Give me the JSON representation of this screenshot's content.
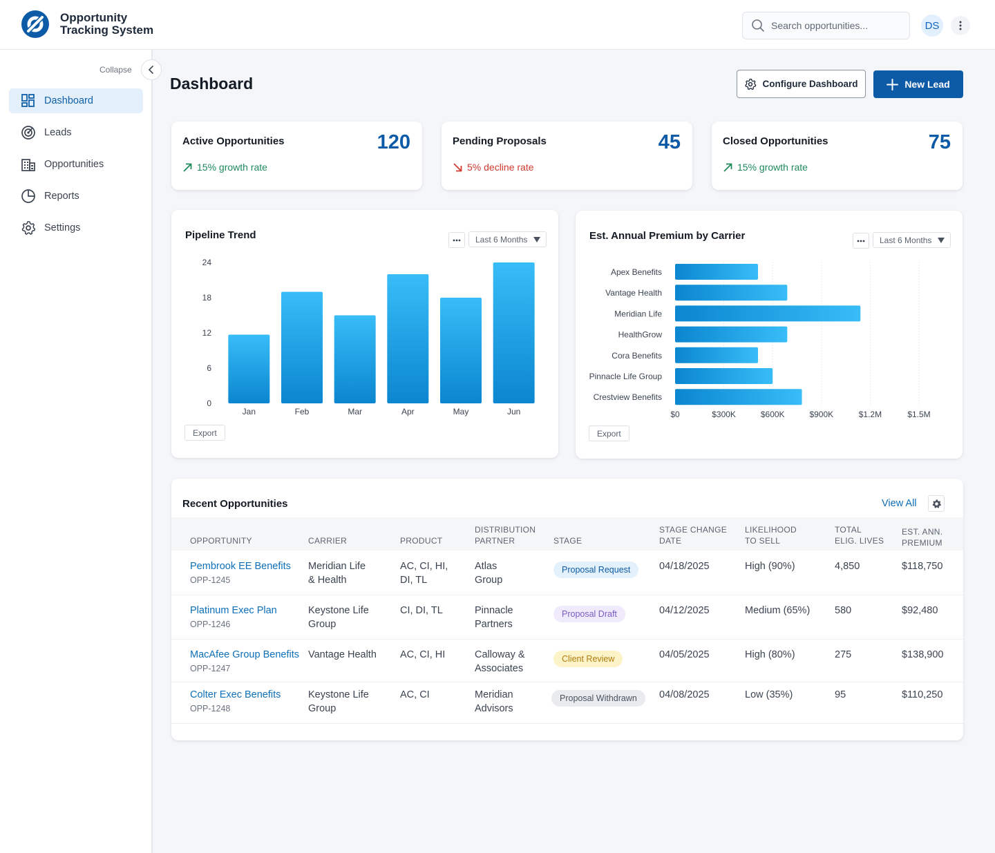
{
  "app": {
    "title_line1": "Opportunity",
    "title_line2": "Tracking System"
  },
  "header": {
    "search_placeholder": "Search opportunities...",
    "avatar_initials": "DS"
  },
  "sidebar": {
    "collapse_label": "Collapse",
    "items": [
      {
        "label": "Dashboard",
        "icon": "dashboard-icon",
        "active": true
      },
      {
        "label": "Leads",
        "icon": "target-icon",
        "active": false
      },
      {
        "label": "Opportunities",
        "icon": "building-icon",
        "active": false
      },
      {
        "label": "Reports",
        "icon": "pie-chart-icon",
        "active": false
      },
      {
        "label": "Settings",
        "icon": "gear-icon",
        "active": false
      }
    ]
  },
  "page": {
    "title": "Dashboard",
    "configure_label": "Configure Dashboard",
    "new_lead_label": "New Lead"
  },
  "kpis": [
    {
      "title": "Active Opportunities",
      "value": "120",
      "trend": "15% growth rate",
      "direction": "up"
    },
    {
      "title": "Pending Proposals",
      "value": "45",
      "trend": "5% decline rate",
      "direction": "down"
    },
    {
      "title": "Closed Opportunities",
      "value": "75",
      "trend": "15% growth rate",
      "direction": "up"
    }
  ],
  "colors": {
    "primary": "#0d5aa7",
    "bar_top": "#38bdf8",
    "bar_bottom": "#0b86d0",
    "growth": "#1e8a5a",
    "decline": "#d13a2e"
  },
  "pipeline_card": {
    "title": "Pipeline Trend",
    "range": "Last 6 Months",
    "export_label": "Export"
  },
  "premium_card": {
    "title": "Est. Annual Premium by Carrier",
    "range": "Last 6 Months",
    "export_label": "Export"
  },
  "chart_data": [
    {
      "type": "bar",
      "title": "Pipeline Trend",
      "categories": [
        "Jan",
        "Feb",
        "Mar",
        "Apr",
        "May",
        "Jun"
      ],
      "values": [
        11.7,
        19,
        15,
        22,
        18,
        24
      ],
      "ylim": [
        0,
        24
      ],
      "yticks": [
        "0",
        "6",
        "12",
        "18",
        "24"
      ],
      "grid": false
    },
    {
      "type": "bar",
      "orientation": "horizontal",
      "title": "Est. Annual Premium by Carrier",
      "categories": [
        "Apex Benefits",
        "Vantage Health",
        "Meridian Life",
        "HealthGrow",
        "Cora Benefits",
        "Pinnacle Life Group",
        "Crestview Benefits"
      ],
      "values": [
        510000,
        690000,
        1140000,
        690000,
        510000,
        600000,
        780000
      ],
      "xlim": [
        0,
        1500000
      ],
      "xticks": [
        "$0",
        "$300K",
        "$600K",
        "$900K",
        "$1.2M",
        "$1.5M"
      ],
      "grid": true
    }
  ],
  "table": {
    "title": "Recent Opportunities",
    "view_all_label": "View All",
    "columns": [
      [
        "OPPORTUNITY"
      ],
      [
        "CARRIER"
      ],
      [
        "PRODUCT"
      ],
      [
        "DISTRIBUTION",
        "PARTNER"
      ],
      [
        "STAGE"
      ],
      [
        "STAGE CHANGE",
        "DATE"
      ],
      [
        "LIKELIHOOD",
        "TO SELL"
      ],
      [
        "TOTAL",
        "ELIG. LIVES"
      ],
      [
        "EST. ANN.",
        "PREMIUM"
      ]
    ],
    "rows": [
      {
        "name": "Pembrook EE Benefits",
        "id": "OPP-1245",
        "carrier": [
          "Meridian Life",
          "& Health"
        ],
        "product": [
          "AC, CI, HI,",
          "DI, TL"
        ],
        "partner": [
          "Atlas",
          "Group"
        ],
        "stage": "Proposal Request",
        "stage_style": "blue",
        "date": "04/18/2025",
        "likelihood": "High (90%)",
        "lives": "4,850",
        "premium": "$118,750"
      },
      {
        "name": "Platinum Exec Plan",
        "id": "OPP-1246",
        "carrier": [
          "Keystone Life",
          "Group"
        ],
        "product": [
          "CI, DI, TL"
        ],
        "partner": [
          "Pinnacle",
          "Partners"
        ],
        "stage": "Proposal Draft",
        "stage_style": "purple",
        "date": "04/12/2025",
        "likelihood": "Medium (65%)",
        "lives": "580",
        "premium": "$92,480"
      },
      {
        "name": "MacAfee Group Benefits",
        "id": "OPP-1247",
        "carrier": [
          "Vantage Health"
        ],
        "product": [
          "AC, CI, HI"
        ],
        "partner": [
          "Calloway &",
          "Associates"
        ],
        "stage": "Client Review",
        "stage_style": "yellow",
        "date": "04/05/2025",
        "likelihood": "High (80%)",
        "lives": "275",
        "premium": "$138,900"
      },
      {
        "name": "Colter Exec Benefits",
        "id": "OPP-1248",
        "carrier": [
          "Keystone Life",
          "Group"
        ],
        "product": [
          "AC, CI"
        ],
        "partner": [
          "Meridian",
          "Advisors"
        ],
        "stage": "Proposal Withdrawn",
        "stage_style": "gray",
        "date": "04/08/2025",
        "likelihood": "Low (35%)",
        "lives": "95",
        "premium": "$110,250"
      }
    ]
  }
}
